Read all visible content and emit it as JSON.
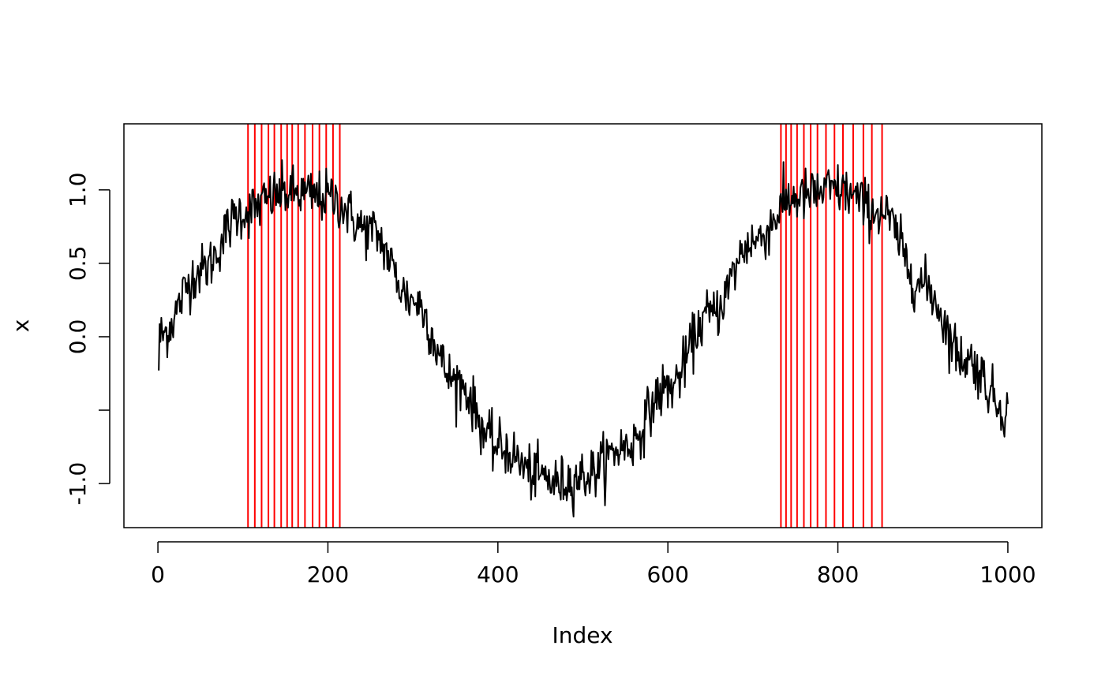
{
  "chart_data": {
    "type": "line",
    "title": "",
    "xlabel": "Index",
    "ylabel": "x",
    "xlim": [
      -40,
      1040
    ],
    "ylim": [
      -1.3,
      1.45
    ],
    "x_ticks": [
      0,
      200,
      400,
      600,
      800,
      1000
    ],
    "x_tick_labels": [
      "0",
      "200",
      "400",
      "600",
      "800",
      "1000"
    ],
    "y_ticks": [
      -1.0,
      -0.5,
      0.0,
      0.5,
      1.0
    ],
    "y_tick_labels": [
      "-1.0",
      "",
      "0.0",
      "0.5",
      "1.0"
    ],
    "grid": false,
    "series": [
      {
        "color": "#000000",
        "n_points": 1000,
        "description_values": {
          "x": [
            1,
            50,
            100,
            150,
            200,
            250,
            300,
            350,
            400,
            450,
            470,
            500,
            550,
            600,
            650,
            700,
            750,
            800,
            850,
            900,
            950,
            1000
          ],
          "y": [
            0.0,
            0.45,
            0.85,
            0.98,
            0.95,
            0.72,
            0.25,
            -0.3,
            -0.75,
            -0.95,
            -1.0,
            -0.95,
            -0.75,
            -0.35,
            0.15,
            0.65,
            0.95,
            1.0,
            0.85,
            0.35,
            -0.15,
            -0.5
          ]
        }
      }
    ],
    "vlines": {
      "color": "#ff0000",
      "x": [
        106,
        114,
        122,
        130,
        137,
        145,
        152,
        158,
        165,
        173,
        182,
        190,
        198,
        206,
        214,
        733,
        739,
        745,
        752,
        760,
        768,
        776,
        786,
        796,
        806,
        818,
        830,
        840,
        852
      ]
    }
  }
}
